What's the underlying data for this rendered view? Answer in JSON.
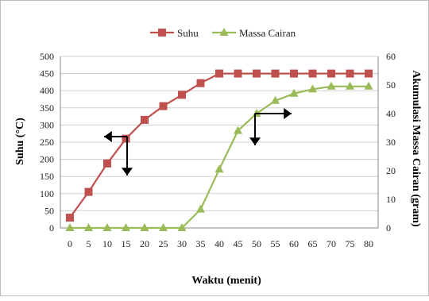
{
  "chart_data": {
    "type": "line",
    "title": "",
    "xlabel": "Waktu (menit)",
    "ylabel_left": "Suhu (°C)",
    "ylabel_right": "Akumulasi Massa Cairan (gram)",
    "x": [
      0,
      5,
      10,
      15,
      20,
      25,
      30,
      35,
      40,
      45,
      50,
      55,
      60,
      65,
      70,
      75,
      80
    ],
    "xlim": [
      0,
      80
    ],
    "ylim_left": [
      0,
      500
    ],
    "ylim_right": [
      0,
      60
    ],
    "left_ticks": [
      "0",
      "50",
      "100",
      "150",
      "200",
      "250",
      "300",
      "350",
      "400",
      "450",
      "500"
    ],
    "right_ticks": [
      "0",
      "10",
      "20",
      "30",
      "40",
      "50",
      "60"
    ],
    "grid": "horizontal",
    "legend_position": "top",
    "series": [
      {
        "name": "Suhu",
        "axis": "left",
        "marker": "square",
        "color": "#c0504d",
        "values": [
          30,
          105,
          188,
          260,
          315,
          355,
          388,
          422,
          450,
          450,
          450,
          450,
          450,
          450,
          450,
          450,
          450
        ]
      },
      {
        "name": "Massa Cairan",
        "axis": "right",
        "marker": "triangle",
        "color": "#9bbb59",
        "values": [
          0,
          0,
          0,
          0,
          0,
          0,
          0,
          6.5,
          20.5,
          34,
          40,
          44.5,
          47,
          48.5,
          49.5,
          49.5,
          49.5
        ]
      }
    ]
  }
}
